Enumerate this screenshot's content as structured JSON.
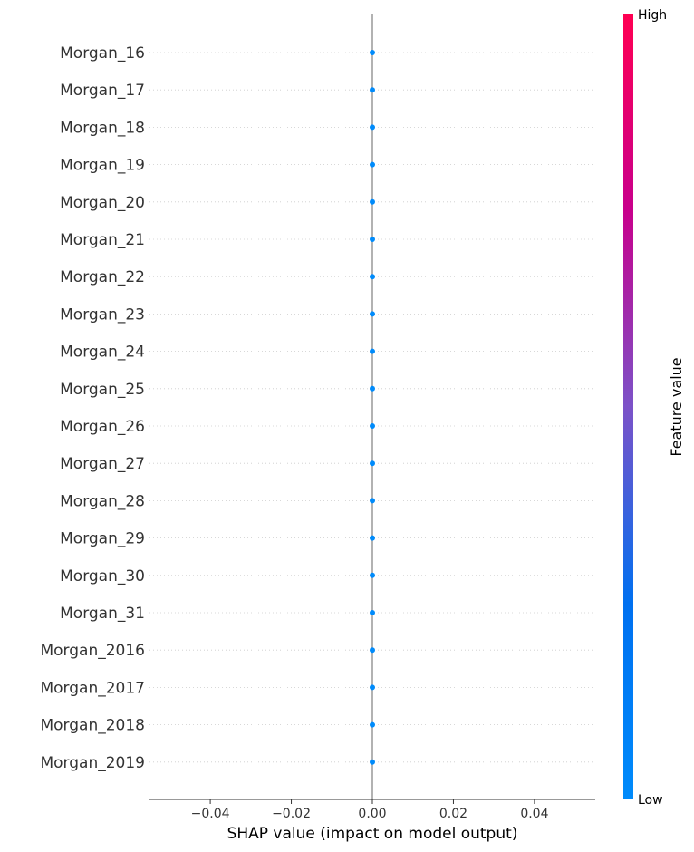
{
  "chart_data": {
    "type": "scatter",
    "subtype": "shap-beeswarm-summary",
    "features": [
      "Morgan_16",
      "Morgan_17",
      "Morgan_18",
      "Morgan_19",
      "Morgan_20",
      "Morgan_21",
      "Morgan_22",
      "Morgan_23",
      "Morgan_24",
      "Morgan_25",
      "Morgan_26",
      "Morgan_27",
      "Morgan_28",
      "Morgan_29",
      "Morgan_30",
      "Morgan_31",
      "Morgan_2016",
      "Morgan_2017",
      "Morgan_2018",
      "Morgan_2019"
    ],
    "shap_values": [
      0,
      0,
      0,
      0,
      0,
      0,
      0,
      0,
      0,
      0,
      0,
      0,
      0,
      0,
      0,
      0,
      0,
      0,
      0,
      0
    ],
    "feature_value_level": [
      0,
      0,
      0,
      0,
      0,
      0,
      0,
      0,
      0,
      0,
      0,
      0,
      0,
      0,
      0,
      0,
      0,
      0,
      0,
      0
    ],
    "xlim": [
      -0.055,
      0.055
    ],
    "xticks": [
      -0.04,
      -0.02,
      0.0,
      0.02,
      0.04
    ],
    "xtick_labels": [
      "−0.04",
      "−0.02",
      "0.00",
      "0.02",
      "0.04"
    ],
    "xlabel": "SHAP value (impact on model output)",
    "grid": "dotted horizontal",
    "colorbar": {
      "title": "Feature value",
      "high_label": "High",
      "low_label": "Low",
      "low_color": "#008bfb",
      "mid_color": "#7c52c8",
      "high_color": "#ff0052"
    },
    "point_color": "#008bfb",
    "zero_line_color": "#999999"
  }
}
